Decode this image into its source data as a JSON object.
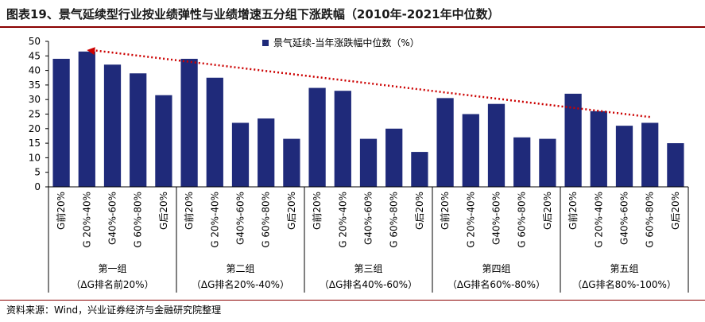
{
  "title": "图表19、景气延续型行业按业绩弹性与业绩增速五分组下涨跌幅（2010年-2021年中位数）",
  "source": "资料来源：Wind，兴业证券经济与金融研究院整理",
  "colors": {
    "bar": "#1f2a7a",
    "trend": "#cc0000",
    "rule": "#8a0000",
    "axis": "#000000"
  },
  "chart_data": {
    "type": "bar",
    "ylim": [
      0,
      50
    ],
    "yticks": [
      0,
      5,
      10,
      15,
      20,
      25,
      30,
      35,
      40,
      45,
      50
    ],
    "legend": {
      "label": "景气延续-当年涨跌幅中位数（%）",
      "placement": "top-right"
    },
    "trendline": {
      "style": "dotted",
      "from": [
        1,
        47
      ],
      "to": [
        23,
        24
      ]
    },
    "groups": [
      {
        "name": "第一组",
        "sub": "（ΔG排名前20%）",
        "categories": [
          "G前20%",
          "G 20%-40%",
          "G40%-60%",
          "G 60%-80%",
          "G后20%"
        ],
        "values": [
          44,
          46.5,
          42,
          39,
          31.5
        ]
      },
      {
        "name": "第二组",
        "sub": "（ΔG排名20%-40%）",
        "categories": [
          "G前20%",
          "G 20%-40%",
          "G40%-60%",
          "G 60%-80%",
          "G后20%"
        ],
        "values": [
          44,
          37.5,
          22,
          23.5,
          16.5
        ]
      },
      {
        "name": "第三组",
        "sub": "（ΔG排名40%-60%）",
        "categories": [
          "G前20%",
          "G 20%-40%",
          "G40%-60%",
          "G 60%-80%",
          "G后20%"
        ],
        "values": [
          34,
          33,
          16.5,
          20,
          12
        ]
      },
      {
        "name": "第四组",
        "sub": "（ΔG排名60%-80%）",
        "categories": [
          "G前20%",
          "G 20%-40%",
          "G40%-60%",
          "G 60%-80%",
          "G后20%"
        ],
        "values": [
          30.5,
          25,
          28.5,
          17,
          16.5
        ]
      },
      {
        "name": "第五组",
        "sub": "（ΔG排名80%-100%）",
        "categories": [
          "G前20%",
          "G 20%-40%",
          "G40%-60%",
          "G 60%-80%",
          "G后20%"
        ],
        "values": [
          32,
          26,
          21,
          22,
          15
        ]
      }
    ]
  }
}
